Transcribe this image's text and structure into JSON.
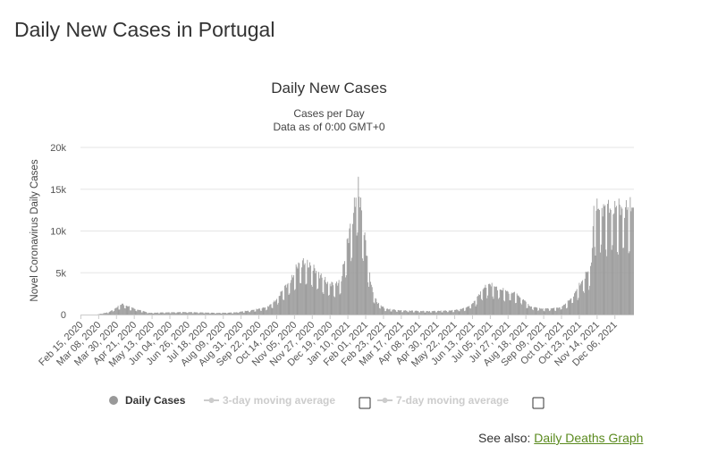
{
  "page": {
    "title": "Daily New Cases in Portugal"
  },
  "see_also": {
    "prefix": "See also:",
    "link_label": "Daily Deaths Graph"
  },
  "colors": {
    "bar": "#999999",
    "grid": "#e6e6e6",
    "link": "#5a8a1e",
    "legend_inactive": "#cccccc"
  },
  "chart_data": {
    "type": "bar",
    "title": "Daily New Cases",
    "subtitle_lines": [
      "Cases per Day",
      "Data as of 0:00 GMT+0"
    ],
    "xlabel": "",
    "ylabel": "Novel Coronavirus Daily Cases",
    "ylim": [
      0,
      20000
    ],
    "yticks": [
      0,
      5000,
      10000,
      15000,
      20000
    ],
    "ytick_labels": [
      "0",
      "5k",
      "10k",
      "15k",
      "20k"
    ],
    "x_start": "2020-02-15",
    "x_end": "2021-12-29",
    "x_tick_labels": [
      "Feb 15, 2020",
      "Mar 08, 2020",
      "Mar 30, 2020",
      "Apr 21, 2020",
      "May 13, 2020",
      "Jun 04, 2020",
      "Jun 26, 2020",
      "Jul 18, 2020",
      "Aug 09, 2020",
      "Aug 31, 2020",
      "Sep 22, 2020",
      "Oct 14, 2020",
      "Nov 05, 2020",
      "Nov 27, 2020",
      "Dec 19, 2020",
      "Jan 10, 2021",
      "Feb 01, 2021",
      "Feb 23, 2021",
      "Mar 17, 2021",
      "Apr 08, 2021",
      "Apr 30, 2021",
      "May 22, 2021",
      "Jun 13, 2021",
      "Jul 05, 2021",
      "Jul 27, 2021",
      "Aug 18, 2021",
      "Sep 09, 2021",
      "Oct 01, 2021",
      "Oct 23, 2021",
      "Nov 14, 2021",
      "Dec 06, 2021"
    ],
    "series": [
      {
        "name": "Daily Cases",
        "visible": true,
        "anchors_day_value": [
          [
            0,
            0
          ],
          [
            20,
            0
          ],
          [
            35,
            300
          ],
          [
            45,
            900
          ],
          [
            52,
            1300
          ],
          [
            58,
            1000
          ],
          [
            70,
            600
          ],
          [
            85,
            200
          ],
          [
            100,
            250
          ],
          [
            130,
            300
          ],
          [
            150,
            250
          ],
          [
            170,
            200
          ],
          [
            190,
            250
          ],
          [
            210,
            500
          ],
          [
            230,
            900
          ],
          [
            240,
            1600
          ],
          [
            250,
            3000
          ],
          [
            262,
            4500
          ],
          [
            268,
            6000
          ],
          [
            275,
            6300
          ],
          [
            285,
            5800
          ],
          [
            295,
            4800
          ],
          [
            305,
            3800
          ],
          [
            315,
            3600
          ],
          [
            322,
            4200
          ],
          [
            328,
            8000
          ],
          [
            332,
            10000
          ],
          [
            337,
            12000
          ],
          [
            340,
            14500
          ],
          [
            342,
            16400
          ],
          [
            346,
            13000
          ],
          [
            352,
            8500
          ],
          [
            356,
            5500
          ],
          [
            360,
            3000
          ],
          [
            366,
            1500
          ],
          [
            376,
            700
          ],
          [
            395,
            500
          ],
          [
            430,
            400
          ],
          [
            460,
            500
          ],
          [
            476,
            800
          ],
          [
            486,
            1500
          ],
          [
            496,
            3000
          ],
          [
            505,
            3700
          ],
          [
            512,
            3300
          ],
          [
            525,
            2800
          ],
          [
            535,
            2600
          ],
          [
            545,
            2000
          ],
          [
            555,
            1000
          ],
          [
            570,
            700
          ],
          [
            590,
            800
          ],
          [
            600,
            1300
          ],
          [
            610,
            2500
          ],
          [
            618,
            3800
          ],
          [
            625,
            5000
          ],
          [
            630,
            5500
          ],
          [
            632,
            8000
          ],
          [
            633,
            10500
          ],
          [
            634,
            12800
          ]
        ],
        "ripple": 0.1
      },
      {
        "name": "3-day moving average",
        "visible": false
      },
      {
        "name": "7-day moving average",
        "visible": false
      }
    ]
  }
}
